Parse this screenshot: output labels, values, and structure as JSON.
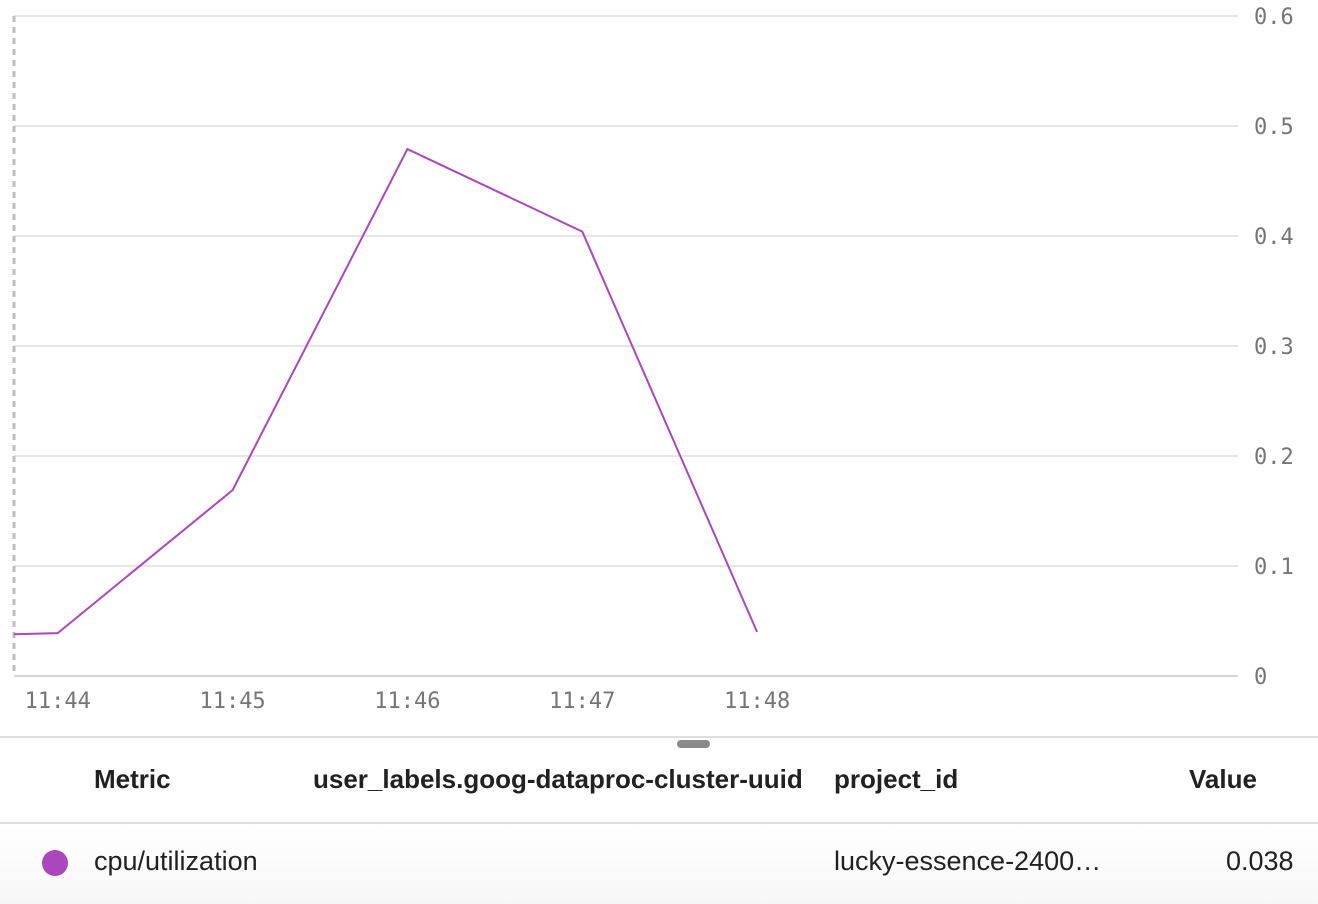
{
  "chart_data": {
    "type": "line",
    "x": [
      "11:44",
      "11:45",
      "11:46",
      "11:47",
      "11:48"
    ],
    "series": [
      {
        "name": "cpu/utilization",
        "color": "#ab47bc",
        "points": [
          {
            "t": 11.75,
            "v": 0.038
          },
          {
            "t": 12.0,
            "v": 0.039
          },
          {
            "t": 13.0,
            "v": 0.169
          },
          {
            "t": 14.0,
            "v": 0.479
          },
          {
            "t": 15.0,
            "v": 0.404
          },
          {
            "t": 16.0,
            "v": 0.04
          }
        ]
      }
    ],
    "xticks": [
      {
        "t": 12.0,
        "label": "11:44"
      },
      {
        "t": 13.0,
        "label": "11:45"
      },
      {
        "t": 14.0,
        "label": "11:46"
      },
      {
        "t": 15.0,
        "label": "11:47"
      },
      {
        "t": 16.0,
        "label": "11:48"
      }
    ],
    "yticks": [
      "0",
      "0.1",
      "0.2",
      "0.3",
      "0.4",
      "0.5",
      "0.6"
    ],
    "ylim": [
      0,
      0.6
    ],
    "xlim": [
      11.75,
      18.75
    ],
    "cursor_t": 11.75,
    "grid": true,
    "yaxis_side": "right"
  },
  "legend": {
    "headers": {
      "metric": "Metric",
      "uuid": "user_labels.goog-dataproc-cluster-uuid",
      "project": "project_id",
      "value": "Value"
    },
    "row": {
      "metric": "cpu/utilization",
      "uuid": "",
      "project": "lucky-essence-2400…",
      "value": "0.038",
      "color": "#ab47bc"
    }
  }
}
